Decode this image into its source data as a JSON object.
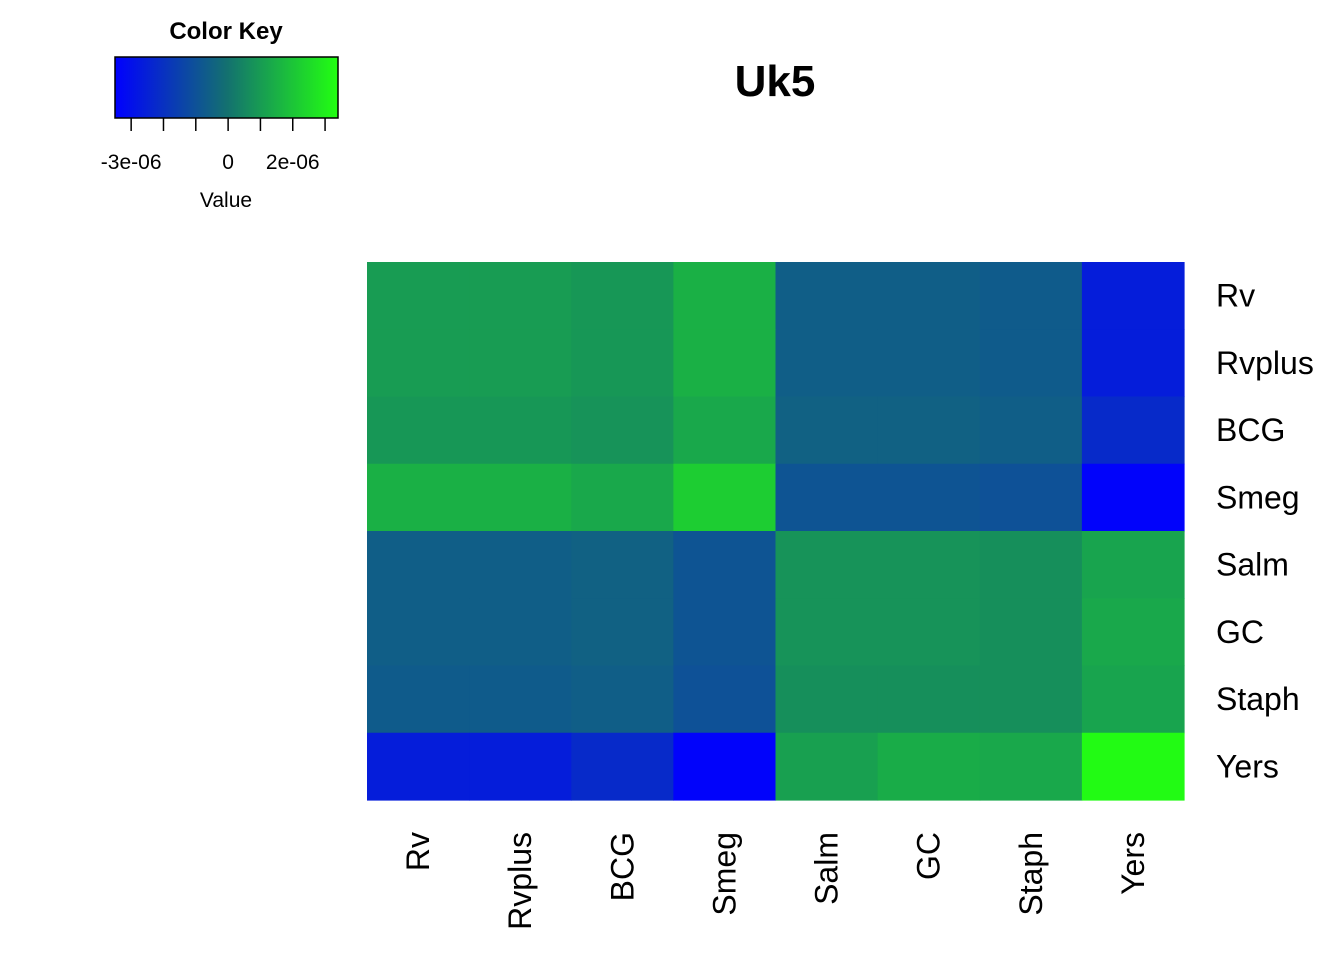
{
  "chart_data": {
    "type": "heatmap",
    "title": "Uk5",
    "rows": [
      "Rv",
      "Rvplus",
      "BCG",
      "Smeg",
      "Salm",
      "GC",
      "Staph",
      "Yers"
    ],
    "columns": [
      "Rv",
      "Rvplus",
      "BCG",
      "Smeg",
      "Salm",
      "GC",
      "Staph",
      "Yers"
    ],
    "values": [
      [
        1e-06,
        1e-06,
        9e-07,
        1.5e-06,
        -6e-07,
        -6e-07,
        -7e-07,
        -2.6e-06
      ],
      [
        1e-06,
        1e-06,
        9e-07,
        1.5e-06,
        -6e-07,
        -6e-07,
        -7e-07,
        -2.6e-06
      ],
      [
        9e-07,
        9e-07,
        8e-07,
        1.3e-06,
        -5e-07,
        -5e-07,
        -6e-07,
        -2.2e-06
      ],
      [
        1.5e-06,
        1.5e-06,
        1.3e-06,
        2.2e-06,
        -9e-07,
        -9e-07,
        -1e-06,
        -3.4e-06
      ],
      [
        -6e-07,
        -6e-07,
        -5e-07,
        -9e-07,
        8e-07,
        8e-07,
        7e-07,
        1.2e-06
      ],
      [
        -6e-07,
        -6e-07,
        -5e-07,
        -9e-07,
        8e-07,
        8e-07,
        7e-07,
        1.3e-06
      ],
      [
        -7e-07,
        -7e-07,
        -6e-07,
        -1e-06,
        7e-07,
        7e-07,
        7e-07,
        1.2e-06
      ],
      [
        -2.6e-06,
        -2.6e-06,
        -2.2e-06,
        -3.4e-06,
        1.1e-06,
        1.4e-06,
        1.3e-06,
        3.3e-06
      ]
    ],
    "color_key": {
      "title": "Color Key",
      "xlabel": "Value",
      "range": [
        -3.5e-06,
        3.4e-06
      ],
      "ticks": [
        -3e-06,
        -2e-06,
        -1e-06,
        0,
        1e-06,
        2e-06,
        3e-06
      ],
      "tick_labels": [
        {
          "value": -3e-06,
          "label": "-3e-06"
        },
        {
          "value": 0,
          "label": "0"
        },
        {
          "value": 2e-06,
          "label": "2e-06"
        }
      ],
      "low_color": "#0000ff",
      "mid_color": "#137070",
      "high_color": "#22ff11"
    }
  }
}
